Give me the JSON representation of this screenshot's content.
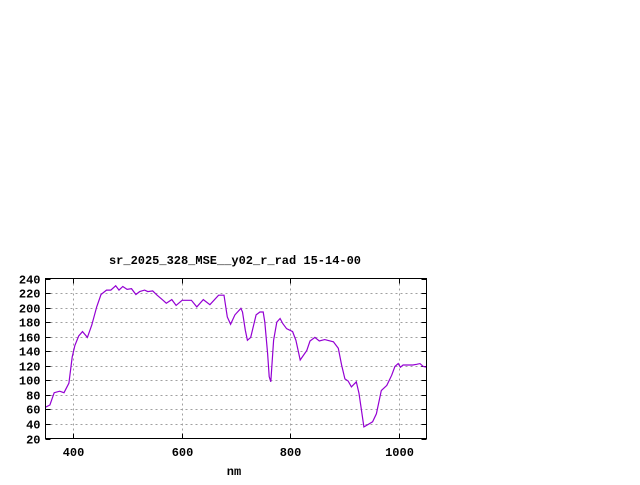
{
  "chart_data": {
    "type": "line",
    "title": "sr_2025_328_MSE__y02_r_rad 15-14-00",
    "xlabel": "nm",
    "ylabel": "",
    "xlim": [
      350,
      1050
    ],
    "ylim": [
      20,
      240
    ],
    "xticks": [
      400,
      600,
      800,
      1000
    ],
    "yticks": [
      20,
      40,
      60,
      80,
      100,
      120,
      140,
      160,
      180,
      200,
      220,
      240
    ],
    "grid": true,
    "legend": "none",
    "line_color": "#9400d3",
    "series": [
      {
        "x": [
          350,
          358,
          366,
          376,
          384,
          393,
          399,
          404,
          411,
          418,
          427,
          435,
          444,
          452,
          462,
          470,
          479,
          485,
          492,
          500,
          508,
          516,
          523,
          532,
          538,
          547,
          555,
          566,
          572,
          582,
          590,
          601,
          618,
          628,
          640,
          652,
          668,
          678,
          684,
          690,
          698,
          709,
          712,
          717,
          721,
          727,
          737,
          744,
          750,
          753,
          758,
          761,
          764,
          769,
          775,
          781,
          786,
          793,
          804,
          810,
          818,
          830,
          836,
          845,
          853,
          863,
          879,
          888,
          894,
          900,
          906,
          912,
          921,
          926,
          935,
          940,
          951,
          958,
          967,
          977,
          986,
          992,
          998,
          1002,
          1007,
          1016,
          1025,
          1032,
          1038,
          1044,
          1050
        ],
        "y": [
          63,
          66,
          83,
          85,
          83,
          96,
          132,
          148,
          161,
          167,
          159,
          176,
          201,
          218,
          224,
          224,
          230,
          224,
          229,
          225,
          226,
          218,
          222,
          224,
          222,
          223,
          217,
          210,
          206,
          211,
          203,
          210,
          210,
          201,
          211,
          204,
          217,
          217,
          187,
          177,
          190,
          199,
          194,
          169,
          155,
          159,
          190,
          194,
          194,
          180,
          137,
          105,
          98,
          155,
          180,
          185,
          178,
          171,
          167,
          155,
          128,
          141,
          154,
          159,
          154,
          156,
          153,
          144,
          121,
          102,
          99,
          91,
          98,
          82,
          36,
          38,
          43,
          54,
          86,
          93,
          107,
          119,
          123,
          118,
          121,
          121,
          121,
          122,
          123,
          119,
          118
        ]
      }
    ]
  }
}
